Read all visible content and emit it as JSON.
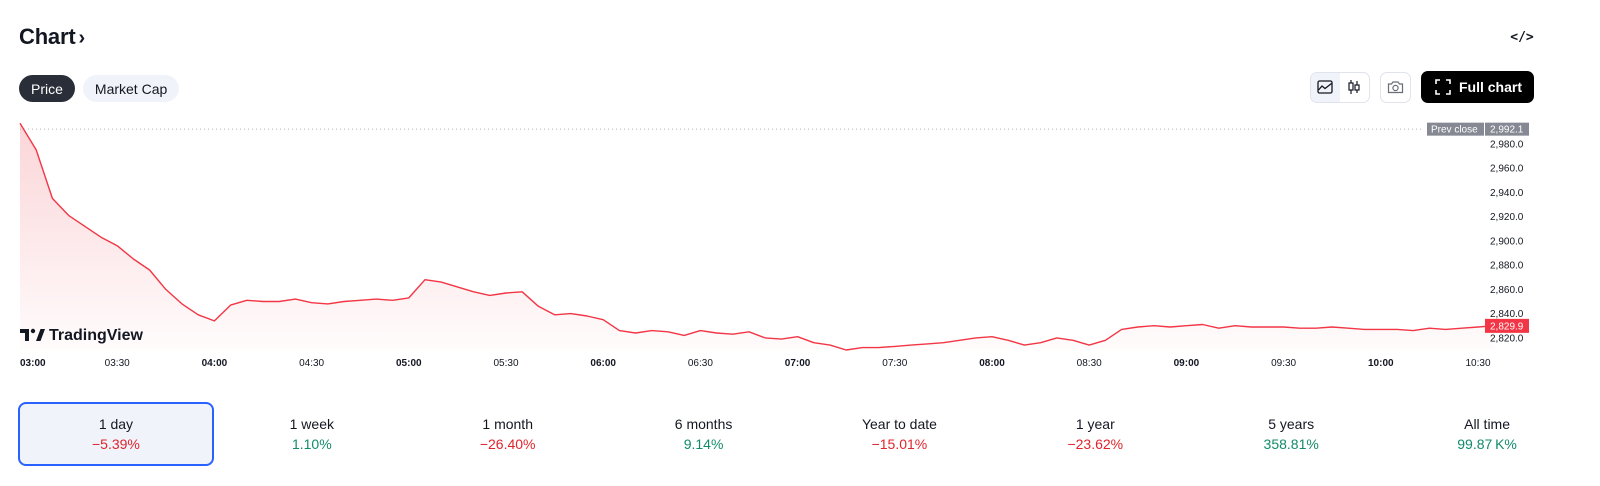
{
  "header": {
    "title": "Chart",
    "chevron": "›",
    "embed_icon": "code-icon",
    "embed_glyph": "</>"
  },
  "tabs": [
    {
      "label": "Price",
      "active": true
    },
    {
      "label": "Market Cap",
      "active": false
    }
  ],
  "toolbar": {
    "area_chart_icon": "area-chart-icon",
    "candles_icon": "candlestick-icon",
    "camera_icon": "camera-icon",
    "full_chart_label": "Full chart",
    "full_chart_icon": "fullscreen-icon"
  },
  "branding": {
    "logo_text": "TradingView"
  },
  "colors": {
    "line": "#f23645",
    "fill_top": "#fbd5d8",
    "prev_close_tag": "#868993",
    "last_price_tag": "#f23645",
    "selection": "#2962ff",
    "positive": "#138b6b",
    "negative": "#e0242c"
  },
  "chart_data": {
    "type": "area",
    "x": [
      "03:00",
      "03:05",
      "03:10",
      "03:15",
      "03:20",
      "03:25",
      "03:30",
      "03:35",
      "03:40",
      "03:45",
      "03:50",
      "03:55",
      "04:00",
      "04:05",
      "04:10",
      "04:15",
      "04:20",
      "04:25",
      "04:30",
      "04:35",
      "04:40",
      "04:45",
      "04:50",
      "04:55",
      "05:00",
      "05:05",
      "05:10",
      "05:15",
      "05:20",
      "05:25",
      "05:30",
      "05:35",
      "05:40",
      "05:45",
      "05:50",
      "05:55",
      "06:00",
      "06:05",
      "06:10",
      "06:15",
      "06:20",
      "06:25",
      "06:30",
      "06:35",
      "06:40",
      "06:45",
      "06:50",
      "06:55",
      "07:00",
      "07:05",
      "07:10",
      "07:15",
      "07:20",
      "07:25",
      "07:30",
      "07:35",
      "07:40",
      "07:45",
      "07:50",
      "07:55",
      "08:00",
      "08:05",
      "08:10",
      "08:15",
      "08:20",
      "08:25",
      "08:30",
      "08:35",
      "08:40",
      "08:45",
      "08:50",
      "08:55",
      "09:00",
      "09:05",
      "09:10",
      "09:15",
      "09:20",
      "09:25",
      "09:30",
      "09:35",
      "09:40",
      "09:45",
      "09:50",
      "09:55",
      "10:00",
      "10:05",
      "10:10",
      "10:15",
      "10:20",
      "10:25",
      "10:30",
      "10:35"
    ],
    "values": [
      2997,
      2975,
      2935,
      2921,
      2912,
      2903,
      2896,
      2885,
      2876,
      2860,
      2848,
      2839,
      2834,
      2847,
      2851,
      2850,
      2850,
      2852,
      2849,
      2848,
      2850,
      2851,
      2852,
      2851,
      2853,
      2868,
      2866,
      2862,
      2858,
      2855,
      2857,
      2858,
      2846,
      2839,
      2840,
      2838,
      2835,
      2826,
      2824,
      2826,
      2825,
      2822,
      2826,
      2824,
      2823,
      2825,
      2820,
      2819,
      2821,
      2816,
      2814,
      2810,
      2812,
      2812,
      2813,
      2814,
      2815,
      2816,
      2818,
      2820,
      2821,
      2818,
      2814,
      2816,
      2820,
      2818,
      2814,
      2818,
      2827,
      2829,
      2830,
      2829,
      2830,
      2831,
      2828,
      2830,
      2829,
      2829,
      2829,
      2828,
      2828,
      2829,
      2828,
      2827,
      2827,
      2827,
      2826,
      2828,
      2827,
      2828,
      2829,
      2830
    ],
    "x_ticks": [
      {
        "label": "03:00",
        "bold": true
      },
      {
        "label": "03:30",
        "bold": false
      },
      {
        "label": "04:00",
        "bold": true
      },
      {
        "label": "04:30",
        "bold": false
      },
      {
        "label": "05:00",
        "bold": true
      },
      {
        "label": "05:30",
        "bold": false
      },
      {
        "label": "06:00",
        "bold": true
      },
      {
        "label": "06:30",
        "bold": false
      },
      {
        "label": "07:00",
        "bold": true
      },
      {
        "label": "07:30",
        "bold": false
      },
      {
        "label": "08:00",
        "bold": true
      },
      {
        "label": "08:30",
        "bold": false
      },
      {
        "label": "09:00",
        "bold": true
      },
      {
        "label": "09:30",
        "bold": false
      },
      {
        "label": "10:00",
        "bold": true
      },
      {
        "label": "10:30",
        "bold": false
      }
    ],
    "y_ticks": [
      "2,980.0",
      "2,960.0",
      "2,940.0",
      "2,920.0",
      "2,900.0",
      "2,880.0",
      "2,860.0",
      "2,840.0",
      "2,820.0"
    ],
    "y_tick_values": [
      2980,
      2960,
      2940,
      2920,
      2900,
      2880,
      2860,
      2840,
      2820
    ],
    "ylim": [
      2810,
      2998
    ],
    "prev_close": {
      "label": "Prev close",
      "value": 2992.1,
      "text": "2,992.1"
    },
    "last_price": {
      "value": 2829.9,
      "text": "2,829.9"
    }
  },
  "periods": [
    {
      "label": "1 day",
      "change": "−5.39%",
      "sign": "neg",
      "active": true
    },
    {
      "label": "1 week",
      "change": "1.10%",
      "sign": "pos",
      "active": false
    },
    {
      "label": "1 month",
      "change": "−26.40%",
      "sign": "neg",
      "active": false
    },
    {
      "label": "6 months",
      "change": "9.14%",
      "sign": "pos",
      "active": false
    },
    {
      "label": "Year to date",
      "change": "−15.01%",
      "sign": "neg",
      "active": false
    },
    {
      "label": "1 year",
      "change": "−23.62%",
      "sign": "neg",
      "active": false
    },
    {
      "label": "5 years",
      "change": "358.81%",
      "sign": "pos",
      "active": false
    },
    {
      "label": "All time",
      "change": "99.87 K%",
      "sign": "pos",
      "active": false
    }
  ]
}
